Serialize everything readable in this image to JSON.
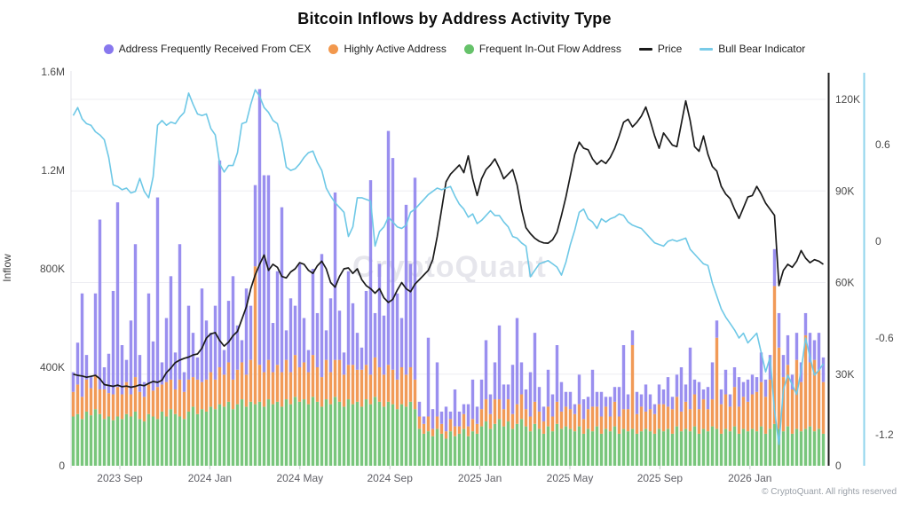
{
  "title": "Bitcoin Inflows by Address Activity Type",
  "watermark": "CryptoQuant",
  "footer": "© CryptoQuant. All rights reserved",
  "legend": {
    "items": [
      {
        "label": "Address Frequently Received From CEX",
        "type": "dot",
        "color": "#8878ee"
      },
      {
        "label": "Highly Active Address",
        "type": "dot",
        "color": "#f2984d"
      },
      {
        "label": "Frequent In-Out Flow Address",
        "type": "dot",
        "color": "#66c26a"
      },
      {
        "label": "Price",
        "type": "line",
        "color": "#1a1a1a"
      },
      {
        "label": "Bull Bear Indicator",
        "type": "line",
        "color": "#79cbe8"
      }
    ]
  },
  "axes": {
    "left": {
      "label": "Inflow",
      "ticks": [
        "0",
        "400K",
        "800K",
        "1.2M",
        "1.6M"
      ],
      "tick_values_k": [
        0,
        400,
        800,
        1200,
        1600
      ]
    },
    "right_price": {
      "ticks": [
        "0",
        "30K",
        "60K",
        "90K",
        "120K"
      ],
      "tick_values_k": [
        0,
        30,
        60,
        90,
        120
      ]
    },
    "right_indicator": {
      "ticks": [
        "0.6",
        "0",
        "-0.6",
        "-1.2"
      ],
      "tick_values": [
        0.6,
        0,
        -0.6,
        -1.2
      ]
    },
    "x": {
      "ticks": [
        "2023 Sep",
        "2024 Jan",
        "2024 May",
        "2024 Sep",
        "2025 Jan",
        "2025 May",
        "2025 Sep",
        "2026 Jan"
      ]
    }
  },
  "chart_data": {
    "type": "mixed",
    "subtype": "stacked-bar + two overlay lines",
    "x_range": [
      "2023 Jul",
      "2026 Mar"
    ],
    "ylim_inflow": [
      0,
      1600000
    ],
    "ylim_price": [
      0,
      129000
    ],
    "ylim_indicator": [
      -1.35,
      0.95
    ],
    "grid": "horizontal at price ticks",
    "legend_position": "top-center",
    "inflow_unit": "thousands",
    "price_unit": "K USD",
    "series": [
      {
        "name": "Frequent In-Out Flow Address",
        "type": "bar",
        "stack": 1,
        "color": "#79c67c",
        "values": [
          200,
          210,
          190,
          220,
          205,
          230,
          210,
          190,
          200,
          185,
          200,
          190,
          210,
          200,
          220,
          190,
          180,
          210,
          200,
          190,
          220,
          200,
          230,
          210,
          200,
          190,
          220,
          240,
          210,
          230,
          220,
          240,
          230,
          250,
          240,
          260,
          230,
          250,
          270,
          240,
          260,
          250,
          260,
          240,
          270,
          250,
          260,
          240,
          270,
          250,
          280,
          260,
          270,
          250,
          280,
          260,
          240,
          270,
          250,
          280,
          260,
          240,
          270,
          250,
          260,
          240,
          270,
          250,
          280,
          260,
          240,
          260,
          250,
          230,
          250,
          240,
          260,
          230,
          150,
          130,
          140,
          120,
          150,
          130,
          110,
          140,
          120,
          130,
          150,
          120,
          140,
          130,
          160,
          180,
          150,
          170,
          190,
          160,
          180,
          150,
          170,
          190,
          160,
          140,
          170,
          150,
          130,
          160,
          140,
          170,
          150,
          160,
          150,
          140,
          160,
          130,
          150,
          140,
          160,
          130,
          150,
          140,
          160,
          130,
          150,
          140,
          150,
          130,
          140,
          150,
          140,
          130,
          150,
          140,
          150,
          130,
          160,
          140,
          150,
          140,
          160,
          130,
          150,
          140,
          160,
          150,
          130,
          150,
          140,
          160,
          130,
          150,
          140,
          150,
          140,
          160,
          130,
          150,
          170,
          150,
          140,
          160,
          130,
          150,
          140,
          150,
          160,
          140,
          150,
          130
        ]
      },
      {
        "name": "Highly Active Address",
        "type": "bar",
        "stack": 2,
        "color": "#f19a57",
        "values": [
          100,
          120,
          90,
          130,
          110,
          140,
          100,
          120,
          95,
          105,
          120,
          100,
          130,
          90,
          140,
          110,
          100,
          120,
          105,
          130,
          110,
          140,
          120,
          100,
          150,
          110,
          130,
          120,
          140,
          110,
          130,
          140,
          120,
          150,
          130,
          160,
          120,
          140,
          150,
          130,
          170,
          560,
          150,
          140,
          160,
          130,
          150,
          140,
          160,
          130,
          170,
          140,
          150,
          130,
          170,
          140,
          120,
          160,
          130,
          150,
          170,
          130,
          140,
          160,
          130,
          150,
          140,
          120,
          160,
          140,
          130,
          150,
          140,
          120,
          150,
          130,
          140,
          120,
          50,
          40,
          60,
          30,
          50,
          40,
          30,
          50,
          40,
          30,
          60,
          40,
          50,
          40,
          70,
          90,
          60,
          100,
          80,
          70,
          90,
          60,
          80,
          100,
          70,
          60,
          90,
          70,
          50,
          80,
          60,
          90,
          70,
          80,
          80,
          70,
          90,
          60,
          80,
          100,
          80,
          70,
          90,
          60,
          100,
          70,
          80,
          90,
          340,
          80,
          100,
          70,
          90,
          80,
          100,
          110,
          90,
          100,
          120,
          80,
          110,
          90,
          130,
          100,
          120,
          90,
          110,
          370,
          120,
          140,
          100,
          160,
          110,
          130,
          120,
          140,
          160,
          180,
          150,
          200,
          560,
          330,
          220,
          250,
          180,
          280,
          200,
          380,
          260,
          290,
          240,
          210
        ]
      },
      {
        "name": "Address Frequently Received From CEX",
        "type": "bar",
        "stack": 3,
        "color": "#9186ee",
        "values": [
          80,
          170,
          420,
          100,
          50,
          330,
          690,
          90,
          160,
          420,
          750,
          200,
          90,
          300,
          540,
          150,
          60,
          370,
          200,
          770,
          90,
          260,
          420,
          150,
          550,
          80,
          300,
          180,
          90,
          380,
          240,
          160,
          300,
          840,
          100,
          250,
          420,
          180,
          90,
          350,
          220,
          330,
          1120,
          800,
          750,
          200,
          380,
          670,
          120,
          300,
          200,
          420,
          180,
          90,
          350,
          220,
          500,
          120,
          300,
          680,
          200,
          90,
          380,
          250,
          150,
          90,
          300,
          790,
          180,
          420,
          240,
          950,
          860,
          350,
          200,
          690,
          420,
          820,
          60,
          30,
          320,
          80,
          220,
          50,
          100,
          30,
          150,
          60,
          40,
          90,
          160,
          70,
          120,
          240,
          80,
          150,
          300,
          100,
          60,
          200,
          350,
          130,
          80,
          180,
          280,
          100,
          60,
          150,
          90,
          230,
          120,
          60,
          70,
          40,
          120,
          80,
          50,
          150,
          60,
          100,
          40,
          80,
          60,
          120,
          260,
          60,
          60,
          90,
          50,
          110,
          60,
          40,
          80,
          60,
          120,
          50,
          90,
          180,
          70,
          250,
          60,
          110,
          40,
          90,
          150,
          70,
          60,
          100,
          50,
          80,
          120,
          60,
          90,
          80,
          60,
          120,
          70,
          100,
          150,
          140,
          90,
          120,
          60,
          110,
          80,
          90,
          120,
          80,
          150,
          100
        ]
      },
      {
        "name": "Price",
        "type": "line",
        "axis": "price",
        "color": "#1a1a1a",
        "values": [
          30,
          29.6,
          29.4,
          29,
          29.3,
          29.6,
          28.5,
          26.6,
          26.3,
          26,
          26.4,
          25.9,
          26.1,
          25.7,
          26,
          26.5,
          26.2,
          27,
          27.6,
          27.3,
          28,
          30.5,
          32,
          33.8,
          34.6,
          35.2,
          35.6,
          36.3,
          36.6,
          38.5,
          41.8,
          43.2,
          43.6,
          41,
          39.2,
          40.5,
          42.6,
          44,
          48,
          52,
          58,
          62.5,
          66,
          69,
          64,
          66,
          65,
          62,
          61.5,
          63.5,
          64.5,
          66.5,
          66,
          64,
          63,
          65.5,
          67,
          64.5,
          60,
          58.5,
          62,
          64.5,
          64.8,
          63,
          64.5,
          61,
          59,
          58,
          56.5,
          58,
          55,
          53.5,
          54.5,
          57.5,
          60,
          58,
          57,
          59.5,
          61,
          62.5,
          64,
          67.5,
          75,
          84,
          93,
          95.5,
          97,
          98.5,
          96,
          101.5,
          94,
          88.5,
          94,
          97,
          98.5,
          100.5,
          97.5,
          94,
          95.5,
          97,
          92,
          84,
          78,
          76,
          74.5,
          73.5,
          73,
          72.9,
          74,
          76.5,
          82,
          88,
          95,
          102,
          106,
          104,
          103.5,
          100.5,
          98.7,
          100,
          99,
          101,
          104,
          108,
          112.5,
          113.5,
          111,
          112.5,
          114.5,
          117.5,
          113,
          108,
          104,
          109,
          107,
          105,
          104.5,
          112,
          119.5,
          113,
          104.5,
          103,
          108,
          102,
          98,
          96.5,
          91.5,
          89,
          87.5,
          84,
          81,
          84.5,
          88,
          88.5,
          91.5,
          89,
          86,
          84,
          82,
          59,
          64,
          66,
          65,
          67,
          70.5,
          68,
          66.5,
          67.5,
          67,
          66
        ]
      },
      {
        "name": "Bull Bear Indicator",
        "type": "line",
        "axis": "indicator",
        "color": "#6ec8e6",
        "values": [
          0.78,
          0.83,
          0.76,
          0.73,
          0.72,
          0.68,
          0.66,
          0.63,
          0.52,
          0.35,
          0.34,
          0.32,
          0.33,
          0.3,
          0.31,
          0.39,
          0.31,
          0.27,
          0.4,
          0.72,
          0.75,
          0.72,
          0.74,
          0.73,
          0.77,
          0.8,
          0.92,
          0.85,
          0.79,
          0.78,
          0.79,
          0.7,
          0.66,
          0.48,
          0.43,
          0.47,
          0.47,
          0.55,
          0.73,
          0.74,
          0.85,
          0.94,
          0.9,
          0.83,
          0.8,
          0.75,
          0.73,
          0.62,
          0.46,
          0.44,
          0.45,
          0.48,
          0.52,
          0.55,
          0.56,
          0.49,
          0.44,
          0.33,
          0.28,
          0.24,
          0.21,
          0.18,
          0.03,
          0.09,
          0.27,
          0.27,
          0.26,
          0.25,
          -0.03,
          0.06,
          0.09,
          0.15,
          0.12,
          0.09,
          0.08,
          0.1,
          0.18,
          0.2,
          0.23,
          0.26,
          0.29,
          0.31,
          0.33,
          0.32,
          0.33,
          0.34,
          0.28,
          0.23,
          0.2,
          0.15,
          0.17,
          0.11,
          0.13,
          0.16,
          0.19,
          0.16,
          0.16,
          0.12,
          0.09,
          0.03,
          0.02,
          -0.01,
          -0.03,
          -0.22,
          -0.18,
          -0.14,
          -0.13,
          -0.12,
          -0.14,
          -0.16,
          -0.21,
          -0.13,
          -0.02,
          0.07,
          0.18,
          0.2,
          0.14,
          0.12,
          0.08,
          0.14,
          0.12,
          0.14,
          0.15,
          0.17,
          0.16,
          0.12,
          0.1,
          0.09,
          0.08,
          0.05,
          0.02,
          -0.01,
          -0.02,
          -0.03,
          0.0,
          0.01,
          0.0,
          0.01,
          0.02,
          -0.05,
          -0.08,
          -0.11,
          -0.14,
          -0.15,
          -0.26,
          -0.34,
          -0.42,
          -0.47,
          -0.51,
          -0.55,
          -0.6,
          -0.57,
          -0.63,
          -0.6,
          -0.57,
          -0.69,
          -0.81,
          -0.72,
          -1.05,
          -1.26,
          -0.92,
          -0.83,
          -0.89,
          -0.95,
          -0.8,
          -0.6,
          -0.72,
          -0.83,
          -0.8,
          -0.76
        ]
      }
    ]
  }
}
